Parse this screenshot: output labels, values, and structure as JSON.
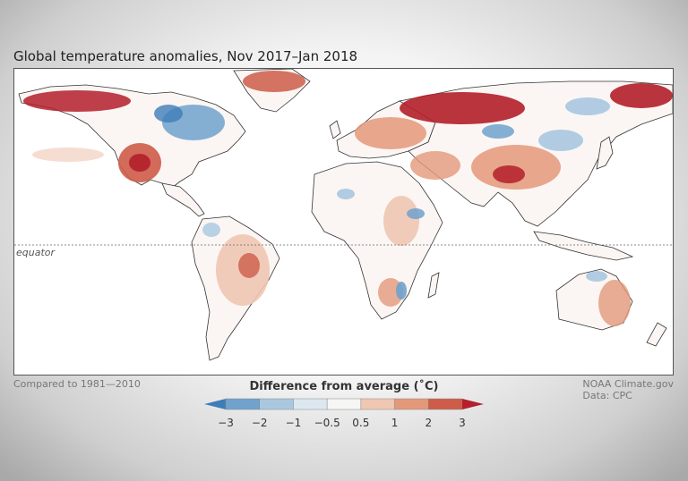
{
  "title": "Global temperature anomalies, Nov 2017–Jan 2018",
  "map": {
    "equator_label": "equator",
    "baseline_note": "Compared to 1981—2010",
    "credit_line1": "NOAA Climate.gov",
    "credit_line2": "Data: CPC"
  },
  "legend": {
    "title": "Difference from average (˚C)",
    "ticks": [
      "−3",
      "−2",
      "−1",
      "−0.5",
      "0.5",
      "1",
      "2",
      "3"
    ],
    "colors": [
      "#3e7db8",
      "#6fa2cc",
      "#a9c8e0",
      "#dce8f0",
      "#f6f6f4",
      "#f0c7b2",
      "#e4987a",
      "#cd5c48",
      "#b31f2a"
    ]
  }
}
